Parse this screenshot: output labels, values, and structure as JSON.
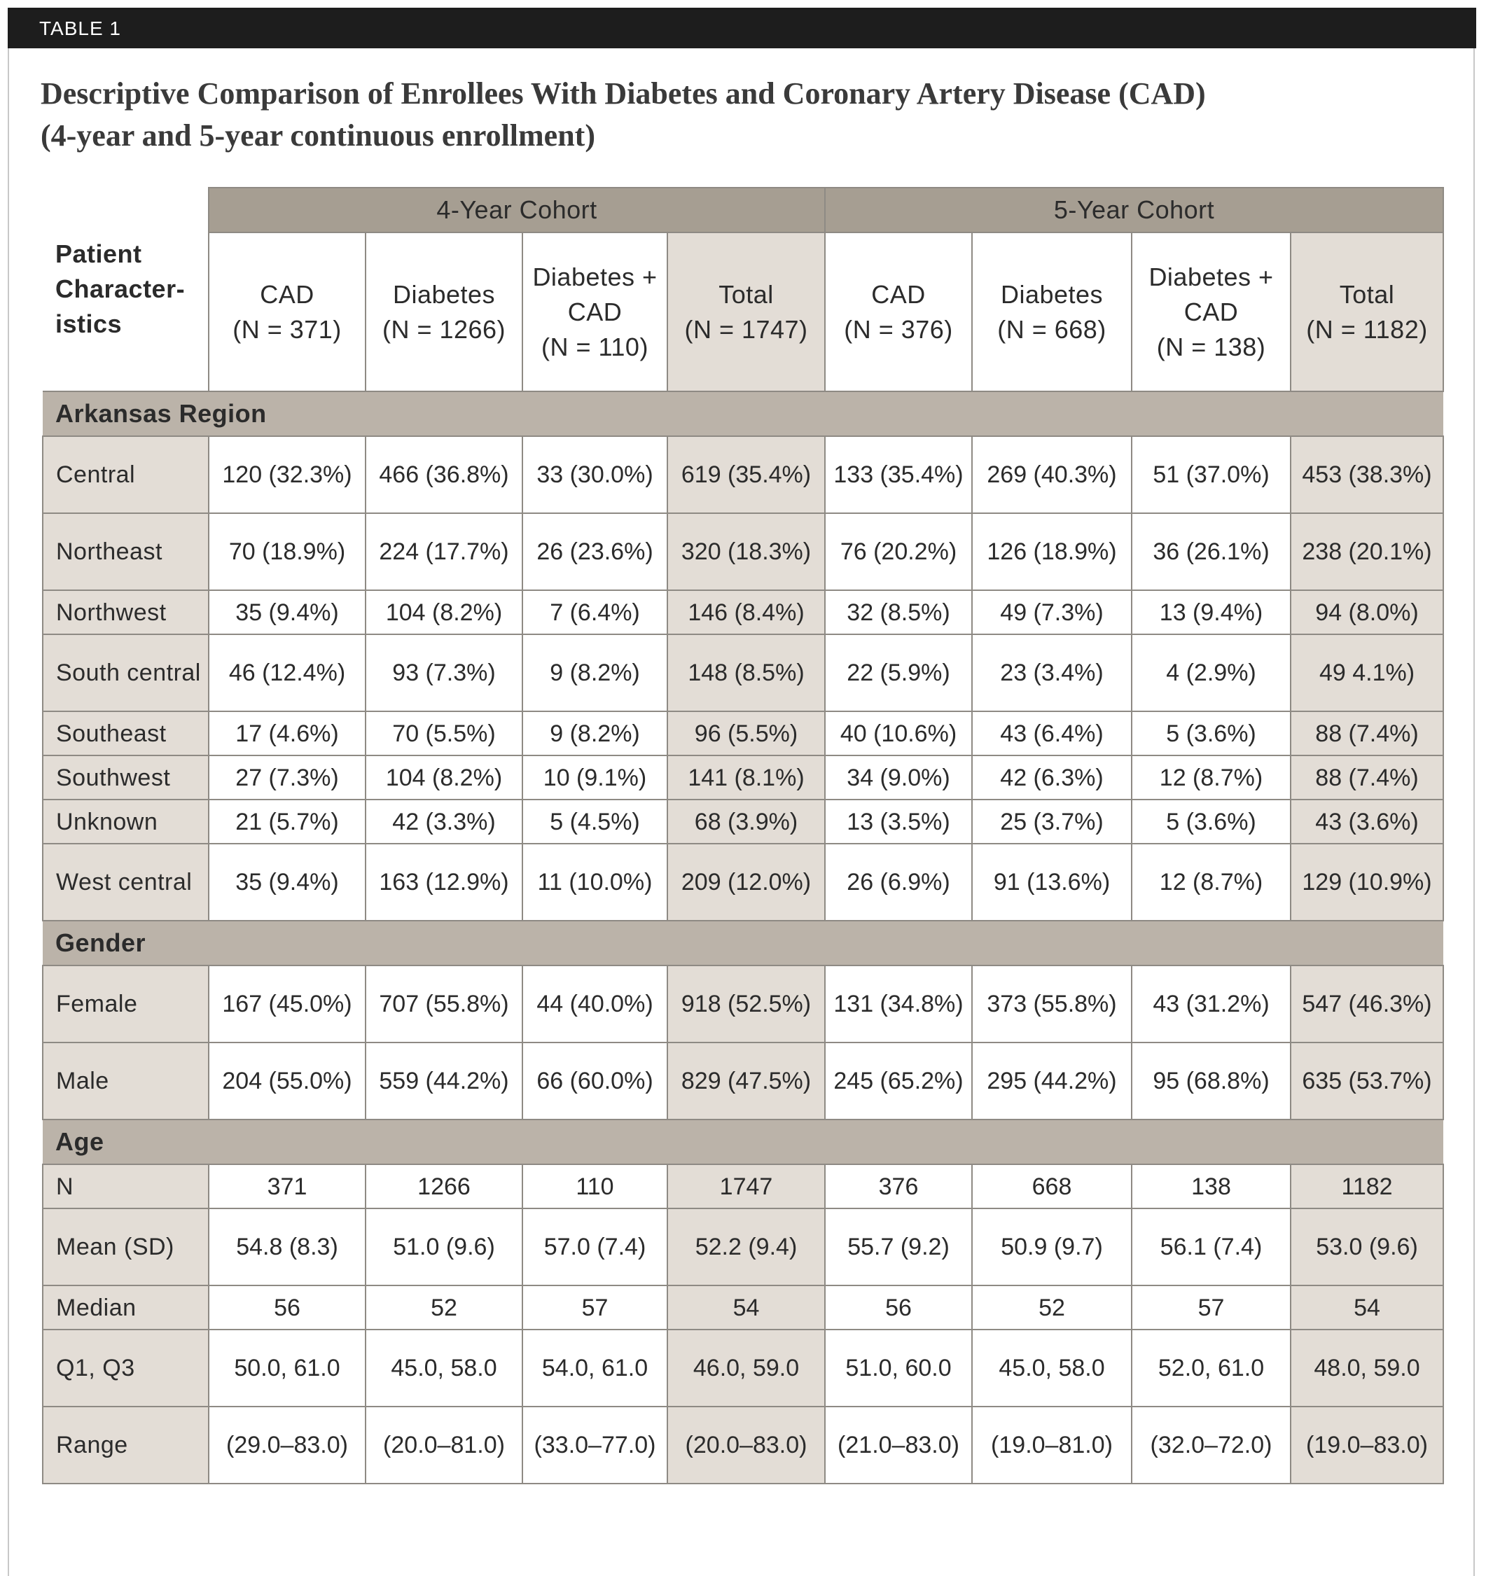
{
  "label": "TABLE 1",
  "title": "Descriptive Comparison of Enrollees With Diabetes and Coronary Artery Disease (CAD)",
  "subtitle": "(4-year and 5-year continuous enrollment)",
  "table": {
    "corner": "Patient Character-istics",
    "groups": [
      "4-Year Cohort",
      "5-Year Cohort"
    ],
    "columns": [
      {
        "name": "CAD",
        "n": "(N = 371)"
      },
      {
        "name": "Diabetes",
        "n": "(N = 1266)"
      },
      {
        "name": "Diabetes + CAD",
        "n": "(N = 110)"
      },
      {
        "name": "Total",
        "n": "(N = 1747)"
      },
      {
        "name": "CAD",
        "n": "(N = 376)"
      },
      {
        "name": "Diabetes",
        "n": "(N = 668)"
      },
      {
        "name": "Diabetes + CAD",
        "n": "(N = 138)"
      },
      {
        "name": "Total",
        "n": "(N = 1182)"
      }
    ],
    "sections": [
      {
        "title": "Arkansas Region",
        "rows": [
          [
            "Central",
            "120 (32.3%)",
            "466 (36.8%)",
            "33 (30.0%)",
            "619 (35.4%)",
            "133 (35.4%)",
            "269 (40.3%)",
            "51 (37.0%)",
            "453 (38.3%)"
          ],
          [
            "Northeast",
            "70 (18.9%)",
            "224 (17.7%)",
            "26 (23.6%)",
            "320 (18.3%)",
            "76 (20.2%)",
            "126 (18.9%)",
            "36 (26.1%)",
            "238 (20.1%)"
          ],
          [
            "Northwest",
            "35 (9.4%)",
            "104 (8.2%)",
            "7 (6.4%)",
            "146 (8.4%)",
            "32 (8.5%)",
            "49 (7.3%)",
            "13 (9.4%)",
            "94 (8.0%)"
          ],
          [
            "South central",
            "46 (12.4%)",
            "93 (7.3%)",
            "9 (8.2%)",
            "148 (8.5%)",
            "22 (5.9%)",
            "23 (3.4%)",
            "4 (2.9%)",
            "49 4.1%)"
          ],
          [
            "Southeast",
            "17 (4.6%)",
            "70 (5.5%)",
            "9 (8.2%)",
            "96 (5.5%)",
            "40 (10.6%)",
            "43 (6.4%)",
            "5 (3.6%)",
            "88 (7.4%)"
          ],
          [
            "Southwest",
            "27 (7.3%)",
            "104 (8.2%)",
            "10 (9.1%)",
            "141 (8.1%)",
            "34 (9.0%)",
            "42 (6.3%)",
            "12 (8.7%)",
            "88 (7.4%)"
          ],
          [
            "Unknown",
            "21 (5.7%)",
            "42 (3.3%)",
            "5 (4.5%)",
            "68 (3.9%)",
            "13 (3.5%)",
            "25 (3.7%)",
            "5 (3.6%)",
            "43 (3.6%)"
          ],
          [
            "West central",
            "35 (9.4%)",
            "163 (12.9%)",
            "11 (10.0%)",
            "209 (12.0%)",
            "26 (6.9%)",
            "91 (13.6%)",
            "12 (8.7%)",
            "129 (10.9%)"
          ]
        ]
      },
      {
        "title": "Gender",
        "rows": [
          [
            "Female",
            "167 (45.0%)",
            "707 (55.8%)",
            "44 (40.0%)",
            "918 (52.5%)",
            "131 (34.8%)",
            "373 (55.8%)",
            "43 (31.2%)",
            "547 (46.3%)"
          ],
          [
            "Male",
            "204 (55.0%)",
            "559 (44.2%)",
            "66 (60.0%)",
            "829 (47.5%)",
            "245 (65.2%)",
            "295 (44.2%)",
            "95 (68.8%)",
            "635 (53.7%)"
          ]
        ]
      },
      {
        "title": "Age",
        "rows": [
          [
            "N",
            "371",
            "1266",
            "110",
            "1747",
            "376",
            "668",
            "138",
            "1182"
          ],
          [
            "Mean (SD)",
            "54.8 (8.3)",
            "51.0 (9.6)",
            "57.0 (7.4)",
            "52.2 (9.4)",
            "55.7 (9.2)",
            "50.9 (9.7)",
            "56.1 (7.4)",
            "53.0 (9.6)"
          ],
          [
            "Median",
            "56",
            "52",
            "57",
            "54",
            "56",
            "52",
            "57",
            "54"
          ],
          [
            "Q1, Q3",
            "50.0, 61.0",
            "45.0, 58.0",
            "54.0, 61.0",
            "46.0, 59.0",
            "51.0, 60.0",
            "45.0, 58.0",
            "52.0, 61.0",
            "48.0, 59.0"
          ],
          [
            "Range",
            "(29.0–83.0)",
            "(20.0–81.0)",
            "(33.0–77.0)",
            "(20.0–83.0)",
            "(21.0–83.0)",
            "(19.0–81.0)",
            "(32.0–72.0)",
            "(19.0–83.0)"
          ]
        ]
      }
    ]
  }
}
